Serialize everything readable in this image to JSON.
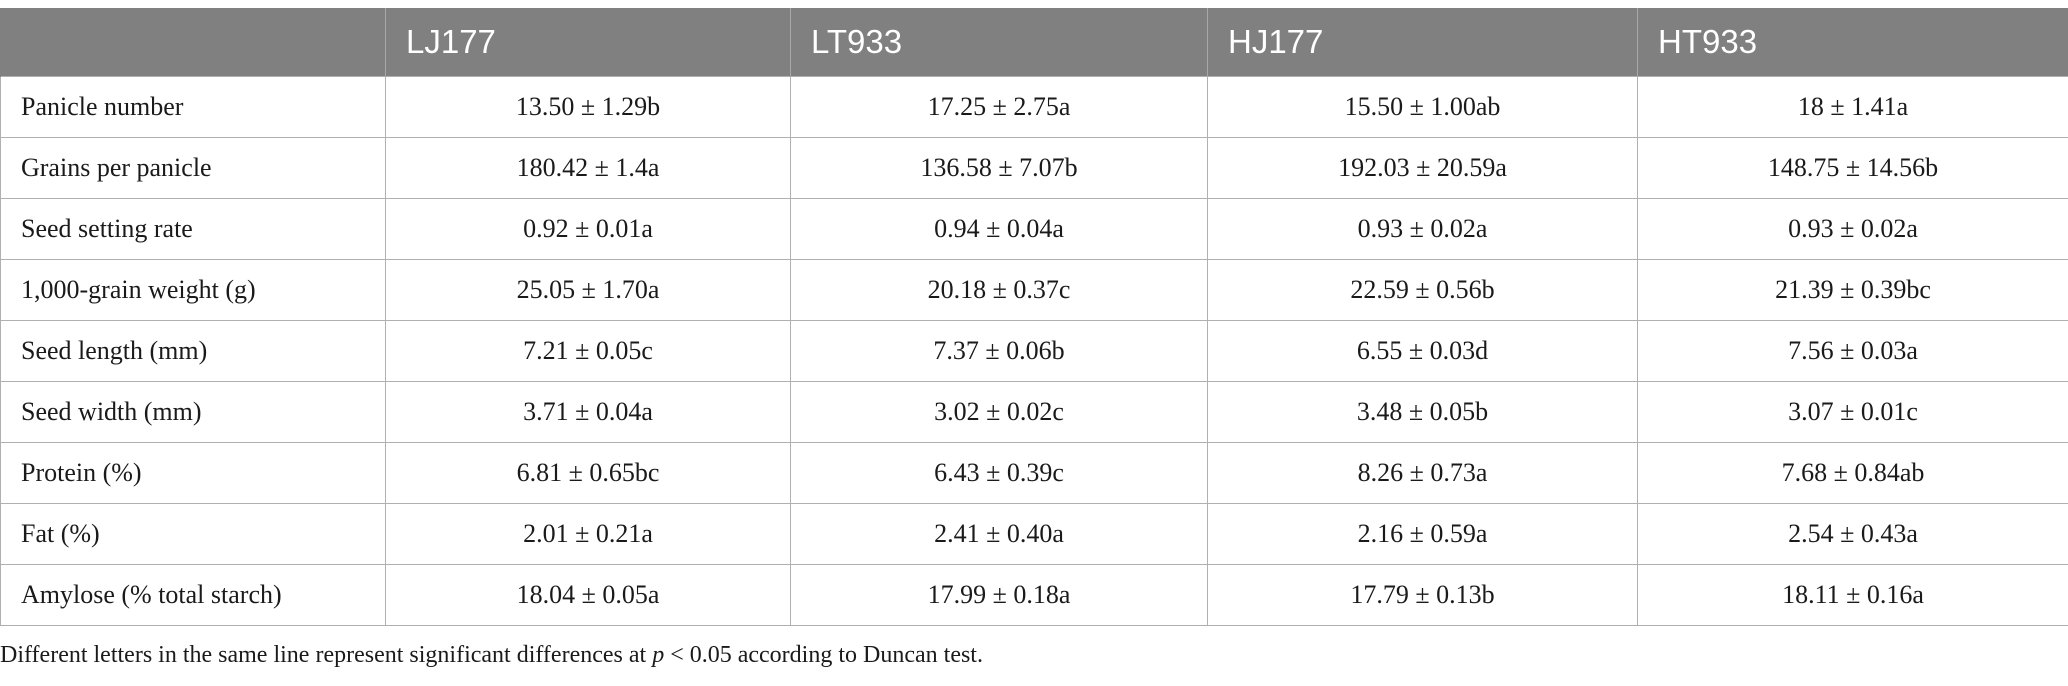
{
  "table": {
    "headers": [
      "",
      "LJ177",
      "LT933",
      "HJ177",
      "HT933"
    ],
    "rows": [
      {
        "label": "Panicle number",
        "cells": [
          "13.50 ± 1.29b",
          "17.25 ± 2.75a",
          "15.50 ± 1.00ab",
          "18 ± 1.41a"
        ]
      },
      {
        "label": "Grains per panicle",
        "cells": [
          "180.42 ± 1.4a",
          "136.58 ± 7.07b",
          "192.03 ± 20.59a",
          "148.75 ± 14.56b"
        ]
      },
      {
        "label": "Seed setting rate",
        "cells": [
          "0.92 ± 0.01a",
          "0.94 ± 0.04a",
          "0.93 ± 0.02a",
          "0.93 ± 0.02a"
        ]
      },
      {
        "label": "1,000-grain weight (g)",
        "cells": [
          "25.05 ± 1.70a",
          "20.18 ± 0.37c",
          "22.59 ± 0.56b",
          "21.39 ± 0.39bc"
        ]
      },
      {
        "label": "Seed length (mm)",
        "cells": [
          "7.21 ± 0.05c",
          "7.37 ± 0.06b",
          "6.55 ± 0.03d",
          "7.56 ± 0.03a"
        ]
      },
      {
        "label": "Seed width (mm)",
        "cells": [
          "3.71 ± 0.04a",
          "3.02 ± 0.02c",
          "3.48 ± 0.05b",
          "3.07 ± 0.01c"
        ]
      },
      {
        "label": "Protein (%)",
        "cells": [
          "6.81 ± 0.65bc",
          "6.43 ± 0.39c",
          "8.26 ± 0.73a",
          "7.68 ± 0.84ab"
        ]
      },
      {
        "label": "Fat (%)",
        "cells": [
          "2.01 ± 0.21a",
          "2.41 ± 0.40a",
          "2.16 ± 0.59a",
          "2.54 ± 0.43a"
        ]
      },
      {
        "label": "Amylose (% total starch)",
        "cells": [
          "18.04 ± 0.05a",
          "17.99 ± 0.18a",
          "17.79 ± 0.13b",
          "18.11 ± 0.16a"
        ]
      }
    ]
  },
  "footnote": {
    "before": "Different letters in the same line represent significant differences at ",
    "p": "p",
    "after": " < 0.05 according to Duncan test."
  },
  "colors": {
    "header_bg": "#808080",
    "header_text": "#ffffff",
    "grid": "#b0b0b0"
  }
}
